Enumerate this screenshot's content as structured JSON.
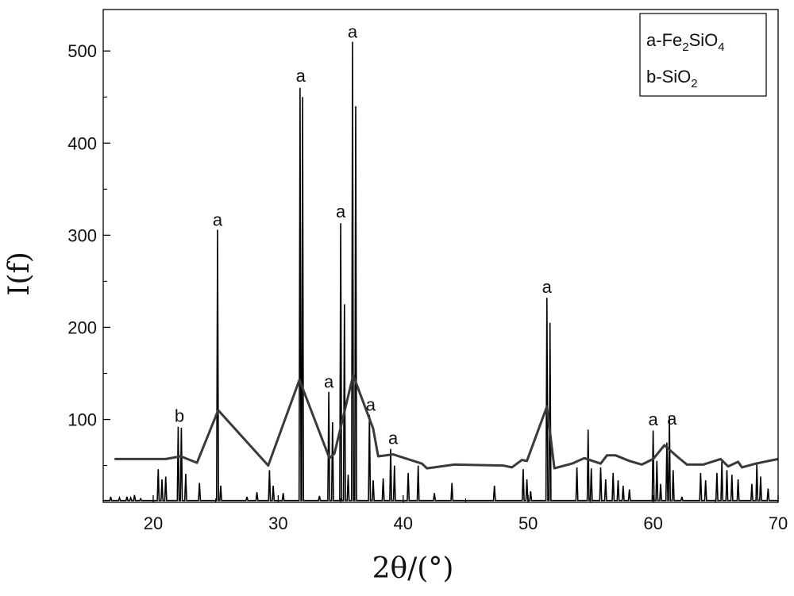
{
  "chart_data": {
    "type": "line",
    "xlabel": "2θ/(°)",
    "ylabel": "I(f)",
    "xlim": [
      16,
      70
    ],
    "ylim": [
      10,
      545
    ],
    "x_ticks": [
      20,
      30,
      40,
      50,
      60,
      70
    ],
    "y_ticks": [
      100,
      200,
      300,
      400,
      500
    ],
    "grid": false,
    "legend": {
      "placement": "top-right",
      "entries": [
        {
          "prefix": "a-",
          "parts": [
            [
              "Fe",
              ""
            ],
            [
              "2",
              "sub"
            ],
            [
              "SiO",
              ""
            ],
            [
              "4",
              "sub"
            ]
          ]
        },
        {
          "prefix": "b-",
          "parts": [
            [
              "SiO",
              ""
            ],
            [
              "2",
              "sub"
            ]
          ]
        }
      ]
    },
    "series": [
      {
        "style": "diffraction-pattern",
        "color": "#000000",
        "baseline": 12,
        "peaks": [
          {
            "x": 16.6,
            "y": 16
          },
          {
            "x": 17.3,
            "y": 15
          },
          {
            "x": 17.9,
            "y": 16
          },
          {
            "x": 18.2,
            "y": 15
          },
          {
            "x": 18.5,
            "y": 18
          },
          {
            "x": 19.0,
            "y": 14
          },
          {
            "x": 20.4,
            "y": 46
          },
          {
            "x": 20.7,
            "y": 35
          },
          {
            "x": 21.0,
            "y": 38
          },
          {
            "x": 22.0,
            "y": 92
          },
          {
            "x": 22.25,
            "y": 91
          },
          {
            "x": 22.6,
            "y": 41
          },
          {
            "x": 23.7,
            "y": 31
          },
          {
            "x": 25.15,
            "y": 306
          },
          {
            "x": 25.4,
            "y": 28
          },
          {
            "x": 27.5,
            "y": 16
          },
          {
            "x": 28.3,
            "y": 21
          },
          {
            "x": 29.3,
            "y": 45
          },
          {
            "x": 29.6,
            "y": 28
          },
          {
            "x": 30.4,
            "y": 20
          },
          {
            "x": 31.75,
            "y": 460
          },
          {
            "x": 31.95,
            "y": 450
          },
          {
            "x": 33.3,
            "y": 17
          },
          {
            "x": 34.05,
            "y": 130
          },
          {
            "x": 34.35,
            "y": 97
          },
          {
            "x": 35.0,
            "y": 313
          },
          {
            "x": 35.3,
            "y": 225
          },
          {
            "x": 35.6,
            "y": 40
          },
          {
            "x": 35.95,
            "y": 510
          },
          {
            "x": 36.2,
            "y": 440
          },
          {
            "x": 37.3,
            "y": 105
          },
          {
            "x": 37.6,
            "y": 34
          },
          {
            "x": 38.4,
            "y": 36
          },
          {
            "x": 39.0,
            "y": 68
          },
          {
            "x": 39.3,
            "y": 50
          },
          {
            "x": 40.4,
            "y": 42
          },
          {
            "x": 41.2,
            "y": 50
          },
          {
            "x": 42.5,
            "y": 20
          },
          {
            "x": 43.9,
            "y": 31
          },
          {
            "x": 47.3,
            "y": 28
          },
          {
            "x": 49.6,
            "y": 46
          },
          {
            "x": 49.9,
            "y": 35
          },
          {
            "x": 50.2,
            "y": 22
          },
          {
            "x": 51.5,
            "y": 232
          },
          {
            "x": 51.75,
            "y": 205
          },
          {
            "x": 53.9,
            "y": 48
          },
          {
            "x": 54.8,
            "y": 89
          },
          {
            "x": 55.05,
            "y": 47
          },
          {
            "x": 55.8,
            "y": 48
          },
          {
            "x": 56.2,
            "y": 35
          },
          {
            "x": 56.8,
            "y": 42
          },
          {
            "x": 57.2,
            "y": 34
          },
          {
            "x": 57.6,
            "y": 28
          },
          {
            "x": 58.1,
            "y": 24
          },
          {
            "x": 60.0,
            "y": 88
          },
          {
            "x": 60.3,
            "y": 55
          },
          {
            "x": 60.6,
            "y": 30
          },
          {
            "x": 61.1,
            "y": 75
          },
          {
            "x": 61.3,
            "y": 103
          },
          {
            "x": 61.6,
            "y": 45
          },
          {
            "x": 62.3,
            "y": 16
          },
          {
            "x": 63.8,
            "y": 42
          },
          {
            "x": 64.2,
            "y": 34
          },
          {
            "x": 65.1,
            "y": 42
          },
          {
            "x": 65.5,
            "y": 55
          },
          {
            "x": 65.9,
            "y": 45
          },
          {
            "x": 66.3,
            "y": 40
          },
          {
            "x": 66.8,
            "y": 35
          },
          {
            "x": 67.9,
            "y": 30
          },
          {
            "x": 68.3,
            "y": 52
          },
          {
            "x": 68.6,
            "y": 38
          },
          {
            "x": 69.2,
            "y": 25
          }
        ]
      },
      {
        "style": "profile-line",
        "color": "#3a3a3a",
        "points": [
          [
            16.9,
            57
          ],
          [
            21.0,
            57
          ],
          [
            22.2,
            60
          ],
          [
            23.5,
            53
          ],
          [
            25.2,
            110
          ],
          [
            29.2,
            50
          ],
          [
            31.7,
            143
          ],
          [
            34.1,
            58
          ],
          [
            34.5,
            63
          ],
          [
            36.0,
            148
          ],
          [
            37.6,
            90
          ],
          [
            38.0,
            60
          ],
          [
            39.2,
            62
          ],
          [
            41.5,
            52
          ],
          [
            41.9,
            47
          ],
          [
            44.1,
            51
          ],
          [
            48.0,
            50
          ],
          [
            48.7,
            48
          ],
          [
            49.5,
            56
          ],
          [
            49.9,
            55
          ],
          [
            51.5,
            114
          ],
          [
            52.1,
            47
          ],
          [
            53.5,
            52
          ],
          [
            54.5,
            58
          ],
          [
            55.8,
            52
          ],
          [
            56.3,
            61
          ],
          [
            57.0,
            61
          ],
          [
            58.1,
            55
          ],
          [
            59.1,
            51
          ],
          [
            60.0,
            57
          ],
          [
            60.9,
            72
          ],
          [
            61.9,
            60
          ],
          [
            62.7,
            51
          ],
          [
            64.0,
            51
          ],
          [
            65.4,
            57
          ],
          [
            66.0,
            49
          ],
          [
            66.8,
            54
          ],
          [
            67.1,
            48
          ],
          [
            68.2,
            52
          ],
          [
            70.0,
            57
          ]
        ]
      }
    ],
    "annotations": [
      {
        "text": "b",
        "x": 22.1,
        "y": 94
      },
      {
        "text": "a",
        "x": 25.15,
        "y": 307
      },
      {
        "text": "a",
        "x": 31.8,
        "y": 463
      },
      {
        "text": "a",
        "x": 34.05,
        "y": 131
      },
      {
        "text": "a",
        "x": 35.0,
        "y": 316
      },
      {
        "text": "a",
        "x": 35.95,
        "y": 511
      },
      {
        "text": "a",
        "x": 37.4,
        "y": 106
      },
      {
        "text": "a",
        "x": 39.2,
        "y": 70
      },
      {
        "text": "a",
        "x": 51.5,
        "y": 234
      },
      {
        "text": "a",
        "x": 60.0,
        "y": 90
      },
      {
        "text": "a",
        "x": 61.5,
        "y": 91
      }
    ]
  }
}
